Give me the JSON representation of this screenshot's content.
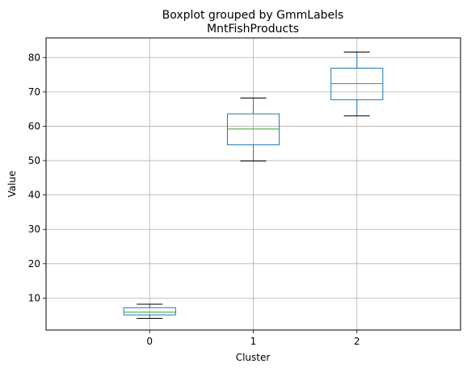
{
  "chart_data": {
    "type": "boxplot",
    "suptitle": "Boxplot grouped by GmmLabels",
    "title": "MntFishProducts",
    "xlabel": "Cluster",
    "ylabel": "Value",
    "categories": [
      "0",
      "1",
      "2"
    ],
    "ylim": [
      0.7,
      85.7
    ],
    "yticks": [
      10,
      20,
      30,
      40,
      50,
      60,
      70,
      80
    ],
    "grid": true,
    "box_color": "#1f77b4",
    "median_color": "#2ca02c",
    "whisker_color": "#1f77b4",
    "cap_color": "#000000",
    "boxes": [
      {
        "category": "0",
        "whislo": 4.1,
        "q1": 5.1,
        "median": 5.9,
        "q3": 7.2,
        "whishi": 8.2
      },
      {
        "category": "1",
        "whislo": 49.9,
        "q1": 54.6,
        "median": 59.2,
        "q3": 63.6,
        "whishi": 68.2
      },
      {
        "category": "2",
        "whislo": 63.0,
        "q1": 67.7,
        "median": 72.4,
        "q3": 76.9,
        "whishi": 81.6
      }
    ]
  }
}
